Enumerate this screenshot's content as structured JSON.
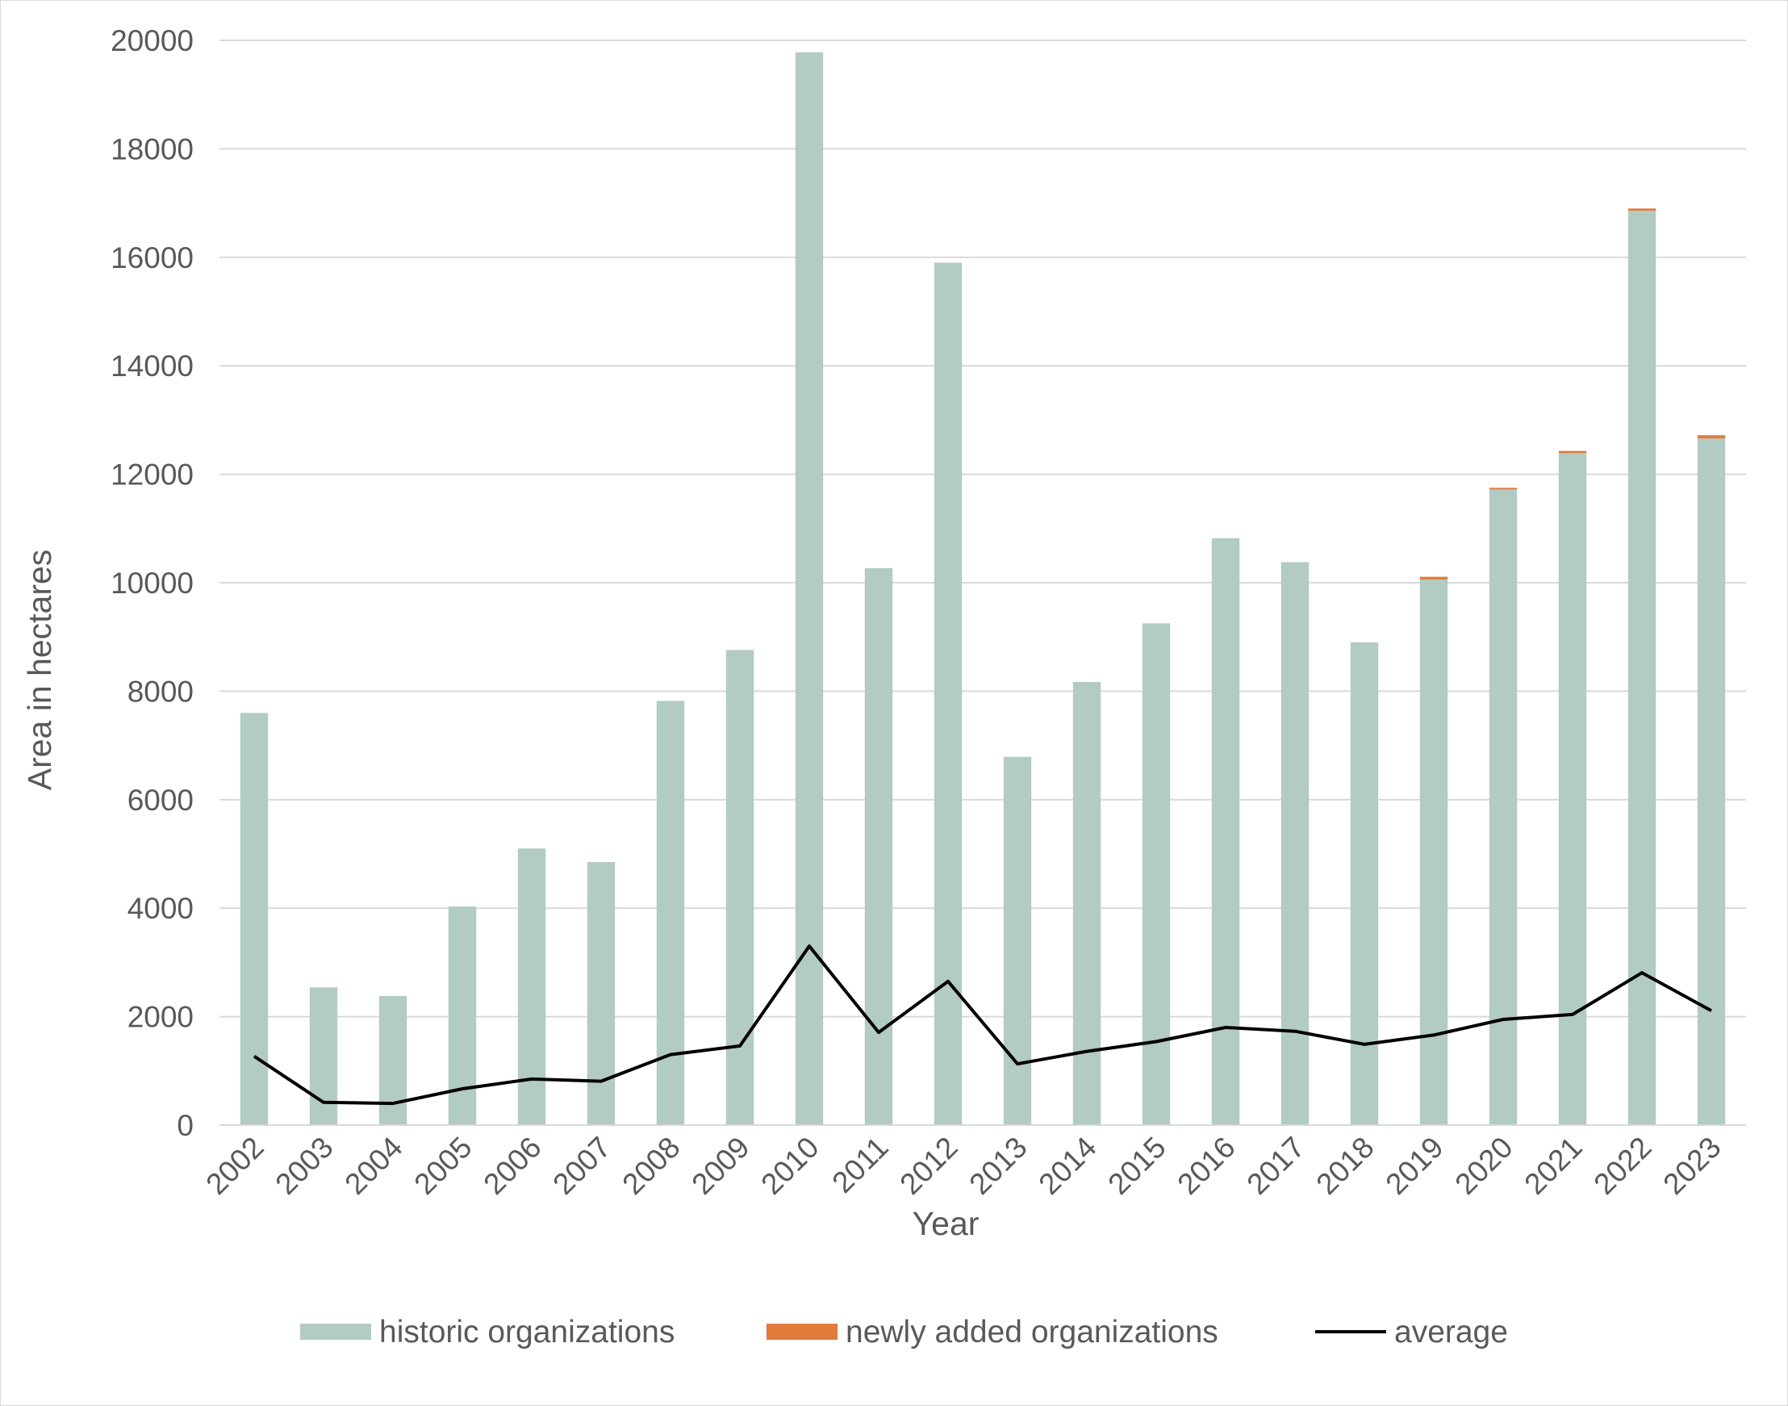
{
  "chart_data": {
    "type": "bar",
    "stacked": true,
    "xlabel": "Year",
    "ylabel": "Area in hectares",
    "ylim": [
      0,
      20000
    ],
    "yticks": [
      0,
      2000,
      4000,
      6000,
      8000,
      10000,
      12000,
      14000,
      16000,
      18000,
      20000
    ],
    "grid": true,
    "legend_position": "bottom",
    "categories": [
      "2002",
      "2003",
      "2004",
      "2005",
      "2006",
      "2007",
      "2008",
      "2009",
      "2010",
      "2011",
      "2012",
      "2013",
      "2014",
      "2015",
      "2016",
      "2017",
      "2018",
      "2019",
      "2020",
      "2021",
      "2022",
      "2023"
    ],
    "series": [
      {
        "name": "historic organizations",
        "type": "bar",
        "color": "#b2cbc3",
        "values": [
          7600,
          2540,
          2380,
          4030,
          5100,
          4850,
          7820,
          8760,
          19780,
          10270,
          15900,
          6790,
          8170,
          9250,
          10820,
          10380,
          8900,
          10060,
          11720,
          12390,
          16860,
          12660
        ]
      },
      {
        "name": "newly added organizations",
        "type": "bar",
        "color": "#e07b3b",
        "values": [
          0,
          0,
          0,
          0,
          0,
          0,
          0,
          0,
          0,
          0,
          0,
          0,
          0,
          0,
          0,
          0,
          0,
          50,
          30,
          40,
          40,
          60
        ]
      },
      {
        "name": "average",
        "type": "line",
        "color": "#000000",
        "values": [
          1270,
          420,
          400,
          670,
          850,
          810,
          1300,
          1460,
          3300,
          1710,
          2650,
          1130,
          1360,
          1540,
          1800,
          1730,
          1490,
          1660,
          1950,
          2040,
          2810,
          2110
        ]
      }
    ]
  }
}
